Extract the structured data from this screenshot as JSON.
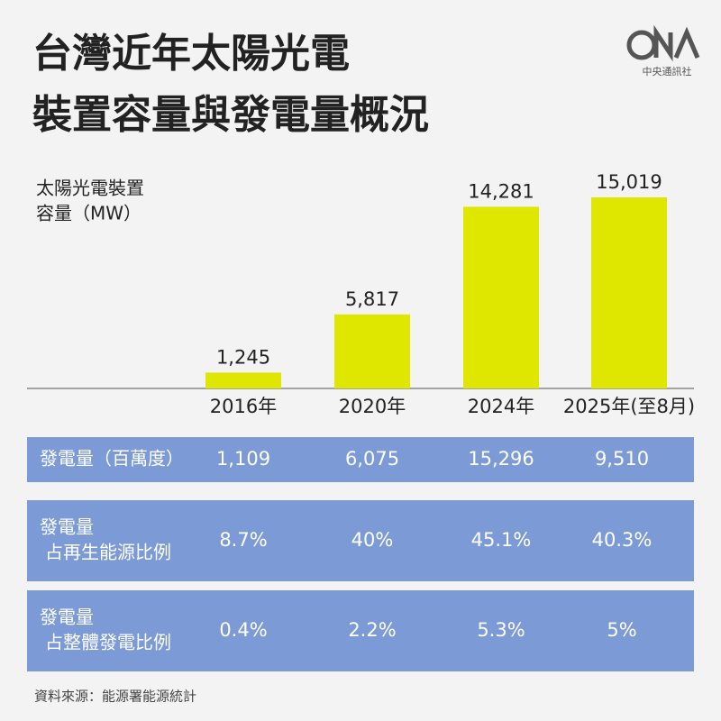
{
  "header": {
    "title_lines": [
      "台灣近年太陽光電",
      "裝置容量與發電量概況"
    ],
    "logo_text": "中央通訊社"
  },
  "chart_data": {
    "type": "bar",
    "y_label_lines": [
      "太陽光電裝置",
      "容量（MW）"
    ],
    "categories": [
      "2016年",
      "2020年",
      "2024年",
      "2025年(至8月)"
    ],
    "values": [
      1245,
      5817,
      14281,
      15019
    ],
    "value_labels": [
      "1,245",
      "5,817",
      "14,281",
      "15,019"
    ],
    "color": "#dfe600"
  },
  "table": {
    "rows": [
      {
        "label_lines": [
          "發電量（百萬度）"
        ],
        "cells": [
          "1,109",
          "6,075",
          "15,296",
          "9,510"
        ]
      },
      {
        "label_lines": [
          "發電量",
          "占再生能源比例"
        ],
        "cells": [
          "8.7%",
          "40%",
          "45.1%",
          "40.3%"
        ]
      },
      {
        "label_lines": [
          "發電量",
          "占整體發電比例"
        ],
        "cells": [
          "0.4%",
          "2.2%",
          "5.3%",
          "5%"
        ]
      }
    ]
  },
  "footer": {
    "source": "資料來源：能源署能源統計"
  }
}
